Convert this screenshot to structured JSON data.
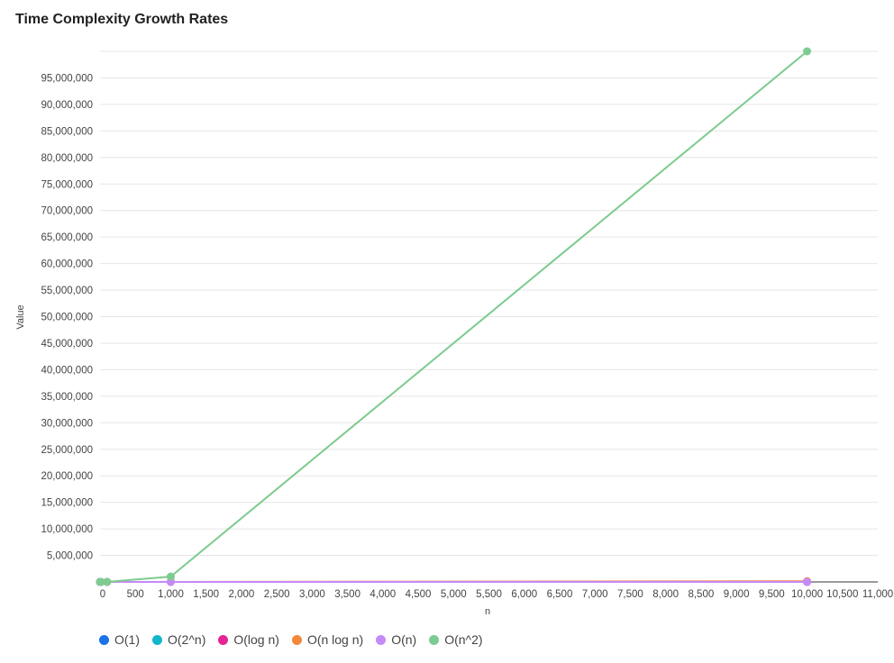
{
  "chart_data": {
    "type": "line",
    "title": "Time Complexity Growth Rates",
    "xlabel": "n",
    "ylabel": "Value",
    "xlim": [
      0,
      11000
    ],
    "ylim": [
      0,
      100000000
    ],
    "x_ticks": [
      0,
      500,
      1000,
      1500,
      2000,
      2500,
      3000,
      3500,
      4000,
      4500,
      5000,
      5500,
      6000,
      6500,
      7000,
      7500,
      8000,
      8500,
      9000,
      9500,
      10000,
      10500,
      11000
    ],
    "x_tick_labels": [
      "0",
      "500",
      "1,000",
      "1,500",
      "2,000",
      "2,500",
      "3,000",
      "3,500",
      "4,000",
      "4,500",
      "5,000",
      "5,500",
      "6,000",
      "6,500",
      "7,000",
      "7,500",
      "8,000",
      "8,500",
      "9,000",
      "9,500",
      "10,000",
      "10,500",
      "11,000"
    ],
    "y_ticks": [
      5000000,
      10000000,
      15000000,
      20000000,
      25000000,
      30000000,
      35000000,
      40000000,
      45000000,
      50000000,
      55000000,
      60000000,
      65000000,
      70000000,
      75000000,
      80000000,
      85000000,
      90000000,
      95000000
    ],
    "y_tick_labels": [
      "5,000,000",
      "10,000,000",
      "15,000,000",
      "20,000,000",
      "25,000,000",
      "30,000,000",
      "35,000,000",
      "40,000,000",
      "45,000,000",
      "50,000,000",
      "55,000,000",
      "60,000,000",
      "65,000,000",
      "70,000,000",
      "75,000,000",
      "80,000,000",
      "85,000,000",
      "90,000,000",
      "95,000,000"
    ],
    "grid": true,
    "legend_position": "bottom-left",
    "series": [
      {
        "name": "O(1)",
        "color": "#1a73e8",
        "x": [
          1,
          10
        ],
        "y": [
          1,
          1
        ]
      },
      {
        "name": "O(2^n)",
        "color": "#12b5cb",
        "x": [
          1,
          10
        ],
        "y": [
          2,
          1024
        ]
      },
      {
        "name": "O(log n)",
        "color": "#e52592",
        "x": [
          1,
          10,
          100,
          1000,
          10000
        ],
        "y": [
          0,
          3.3,
          6.6,
          10,
          13.3
        ]
      },
      {
        "name": "O(n log n)",
        "color": "#f4883a",
        "x": [
          1,
          10,
          100,
          1000,
          10000
        ],
        "y": [
          0,
          33,
          664,
          9966,
          132877
        ]
      },
      {
        "name": "O(n)",
        "color": "#c58af9",
        "x": [
          1,
          10,
          100,
          1000,
          10000
        ],
        "y": [
          1,
          10,
          100,
          1000,
          10000
        ]
      },
      {
        "name": "O(n^2)",
        "color": "#7dcb8f",
        "x": [
          1,
          10,
          100,
          1000,
          10000
        ],
        "y": [
          1,
          100,
          10000,
          1000000,
          100000000
        ]
      }
    ]
  }
}
